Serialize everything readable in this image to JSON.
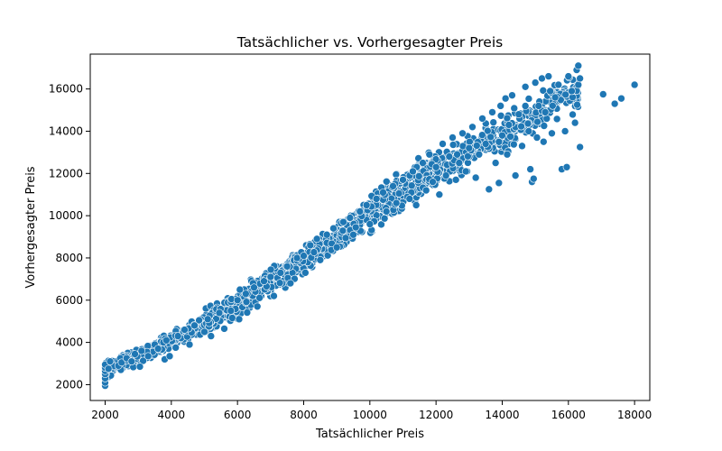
{
  "chart_data": {
    "type": "scatter",
    "title": "Tatsächlicher vs. Vorhergesagter Preis",
    "xlabel": "Tatsächlicher Preis",
    "ylabel": "Vorhergesagter Preis",
    "xlim": [
      1550,
      18460
    ],
    "ylim": [
      1250,
      17650
    ],
    "xticks": [
      2000,
      4000,
      6000,
      8000,
      10000,
      12000,
      14000,
      16000,
      18000
    ],
    "yticks": [
      2000,
      4000,
      6000,
      8000,
      10000,
      12000,
      14000,
      16000
    ],
    "xtick_labels": [
      "2000",
      "4000",
      "6000",
      "8000",
      "10000",
      "12000",
      "14000",
      "16000",
      "18000"
    ],
    "ytick_labels": [
      "2000",
      "4000",
      "6000",
      "8000",
      "10000",
      "12000",
      "14000",
      "16000"
    ],
    "grid": false,
    "legend": "none",
    "colors": {
      "marker": "#1f77b4",
      "marker_edge": "#ffffff",
      "axes": "#000000"
    },
    "trend_points": {
      "x": [
        2000,
        3000,
        4000,
        5000,
        6000,
        7000,
        8000,
        9000,
        10000,
        11000,
        12000,
        13000,
        14000,
        15000,
        16000
      ],
      "y": [
        2700,
        3350,
        4100,
        4950,
        5800,
        6900,
        7900,
        9000,
        10150,
        11250,
        12200,
        13100,
        13900,
        14800,
        15700
      ]
    },
    "points": [
      {
        "x": 2000,
        "y": 1950
      },
      {
        "x": 2000,
        "y": 2100
      },
      {
        "x": 2000,
        "y": 2300
      },
      {
        "x": 2000,
        "y": 2500
      },
      {
        "x": 2000,
        "y": 2650
      },
      {
        "x": 2000,
        "y": 2800
      },
      {
        "x": 2000,
        "y": 2950
      },
      {
        "x": 2100,
        "y": 2750
      },
      {
        "x": 2150,
        "y": 3100
      },
      {
        "x": 2400,
        "y": 2900
      },
      {
        "x": 2500,
        "y": 3050
      },
      {
        "x": 2650,
        "y": 3250
      },
      {
        "x": 2800,
        "y": 3100
      },
      {
        "x": 2900,
        "y": 3450
      },
      {
        "x": 3050,
        "y": 2850
      },
      {
        "x": 3100,
        "y": 3600
      },
      {
        "x": 3300,
        "y": 3350
      },
      {
        "x": 3500,
        "y": 3900
      },
      {
        "x": 3600,
        "y": 3700
      },
      {
        "x": 3800,
        "y": 3200
      },
      {
        "x": 3850,
        "y": 4100
      },
      {
        "x": 3950,
        "y": 3350
      },
      {
        "x": 4200,
        "y": 4300
      },
      {
        "x": 4400,
        "y": 4600
      },
      {
        "x": 4550,
        "y": 3900
      },
      {
        "x": 4700,
        "y": 4800
      },
      {
        "x": 5000,
        "y": 4500
      },
      {
        "x": 5100,
        "y": 5100
      },
      {
        "x": 5200,
        "y": 4300
      },
      {
        "x": 5450,
        "y": 5400
      },
      {
        "x": 5600,
        "y": 4650
      },
      {
        "x": 5800,
        "y": 5500
      },
      {
        "x": 6000,
        "y": 6000
      },
      {
        "x": 6050,
        "y": 5100
      },
      {
        "x": 6250,
        "y": 6300
      },
      {
        "x": 6500,
        "y": 6600
      },
      {
        "x": 6600,
        "y": 5700
      },
      {
        "x": 6800,
        "y": 6900
      },
      {
        "x": 7000,
        "y": 7100
      },
      {
        "x": 7100,
        "y": 6200
      },
      {
        "x": 7300,
        "y": 7300
      },
      {
        "x": 7500,
        "y": 7600
      },
      {
        "x": 7600,
        "y": 6800
      },
      {
        "x": 7800,
        "y": 8000
      },
      {
        "x": 8000,
        "y": 8100
      },
      {
        "x": 8050,
        "y": 7300
      },
      {
        "x": 8200,
        "y": 8600
      },
      {
        "x": 8400,
        "y": 8900
      },
      {
        "x": 8500,
        "y": 7900
      },
      {
        "x": 8700,
        "y": 9100
      },
      {
        "x": 8900,
        "y": 9400
      },
      {
        "x": 9000,
        "y": 8500
      },
      {
        "x": 9200,
        "y": 9700
      },
      {
        "x": 9400,
        "y": 9900
      },
      {
        "x": 9500,
        "y": 9100
      },
      {
        "x": 9700,
        "y": 10200
      },
      {
        "x": 9900,
        "y": 10500
      },
      {
        "x": 10000,
        "y": 9600
      },
      {
        "x": 10200,
        "y": 10800
      },
      {
        "x": 10400,
        "y": 11100
      },
      {
        "x": 10500,
        "y": 10200
      },
      {
        "x": 10700,
        "y": 11400
      },
      {
        "x": 10800,
        "y": 10600
      },
      {
        "x": 11000,
        "y": 11700
      },
      {
        "x": 11200,
        "y": 10800
      },
      {
        "x": 11300,
        "y": 12100
      },
      {
        "x": 11400,
        "y": 10500
      },
      {
        "x": 11600,
        "y": 12500
      },
      {
        "x": 11700,
        "y": 11200
      },
      {
        "x": 11800,
        "y": 12900
      },
      {
        "x": 11900,
        "y": 11600
      },
      {
        "x": 12000,
        "y": 12300
      },
      {
        "x": 12100,
        "y": 11000
      },
      {
        "x": 12200,
        "y": 13400
      },
      {
        "x": 12300,
        "y": 11900
      },
      {
        "x": 12400,
        "y": 12800
      },
      {
        "x": 12500,
        "y": 13700
      },
      {
        "x": 12600,
        "y": 11700
      },
      {
        "x": 12700,
        "y": 12500
      },
      {
        "x": 12800,
        "y": 13900
      },
      {
        "x": 12900,
        "y": 12100
      },
      {
        "x": 13000,
        "y": 13200
      },
      {
        "x": 13100,
        "y": 14200
      },
      {
        "x": 13200,
        "y": 11800
      },
      {
        "x": 13300,
        "y": 12900
      },
      {
        "x": 13400,
        "y": 14600
      },
      {
        "x": 13500,
        "y": 13400
      },
      {
        "x": 13600,
        "y": 11250
      },
      {
        "x": 13700,
        "y": 14900
      },
      {
        "x": 13800,
        "y": 12500
      },
      {
        "x": 13900,
        "y": 11550
      },
      {
        "x": 13950,
        "y": 15200
      },
      {
        "x": 14000,
        "y": 13800
      },
      {
        "x": 14100,
        "y": 15550
      },
      {
        "x": 14150,
        "y": 12900
      },
      {
        "x": 14200,
        "y": 14300
      },
      {
        "x": 14300,
        "y": 15700
      },
      {
        "x": 14400,
        "y": 11900
      },
      {
        "x": 14500,
        "y": 14800
      },
      {
        "x": 14600,
        "y": 13300
      },
      {
        "x": 14700,
        "y": 16100
      },
      {
        "x": 14800,
        "y": 14000
      },
      {
        "x": 14850,
        "y": 12200
      },
      {
        "x": 14900,
        "y": 11600
      },
      {
        "x": 14950,
        "y": 11750
      },
      {
        "x": 15000,
        "y": 16300
      },
      {
        "x": 15050,
        "y": 13700
      },
      {
        "x": 15100,
        "y": 15200
      },
      {
        "x": 15200,
        "y": 16500
      },
      {
        "x": 15250,
        "y": 13500
      },
      {
        "x": 15300,
        "y": 14900
      },
      {
        "x": 15400,
        "y": 16600
      },
      {
        "x": 15450,
        "y": 15900
      },
      {
        "x": 15500,
        "y": 13900
      },
      {
        "x": 15600,
        "y": 15600
      },
      {
        "x": 15700,
        "y": 16200
      },
      {
        "x": 15800,
        "y": 12200
      },
      {
        "x": 15900,
        "y": 14000
      },
      {
        "x": 15950,
        "y": 12300
      },
      {
        "x": 16000,
        "y": 16600
      },
      {
        "x": 16100,
        "y": 15900
      },
      {
        "x": 16200,
        "y": 14400
      },
      {
        "x": 16250,
        "y": 16900
      },
      {
        "x": 16300,
        "y": 17100
      },
      {
        "x": 16300,
        "y": 16200
      },
      {
        "x": 16350,
        "y": 13250
      },
      {
        "x": 16350,
        "y": 16500
      },
      {
        "x": 17050,
        "y": 15750
      },
      {
        "x": 17400,
        "y": 15300
      },
      {
        "x": 17600,
        "y": 15550
      },
      {
        "x": 18000,
        "y": 16200
      }
    ]
  }
}
